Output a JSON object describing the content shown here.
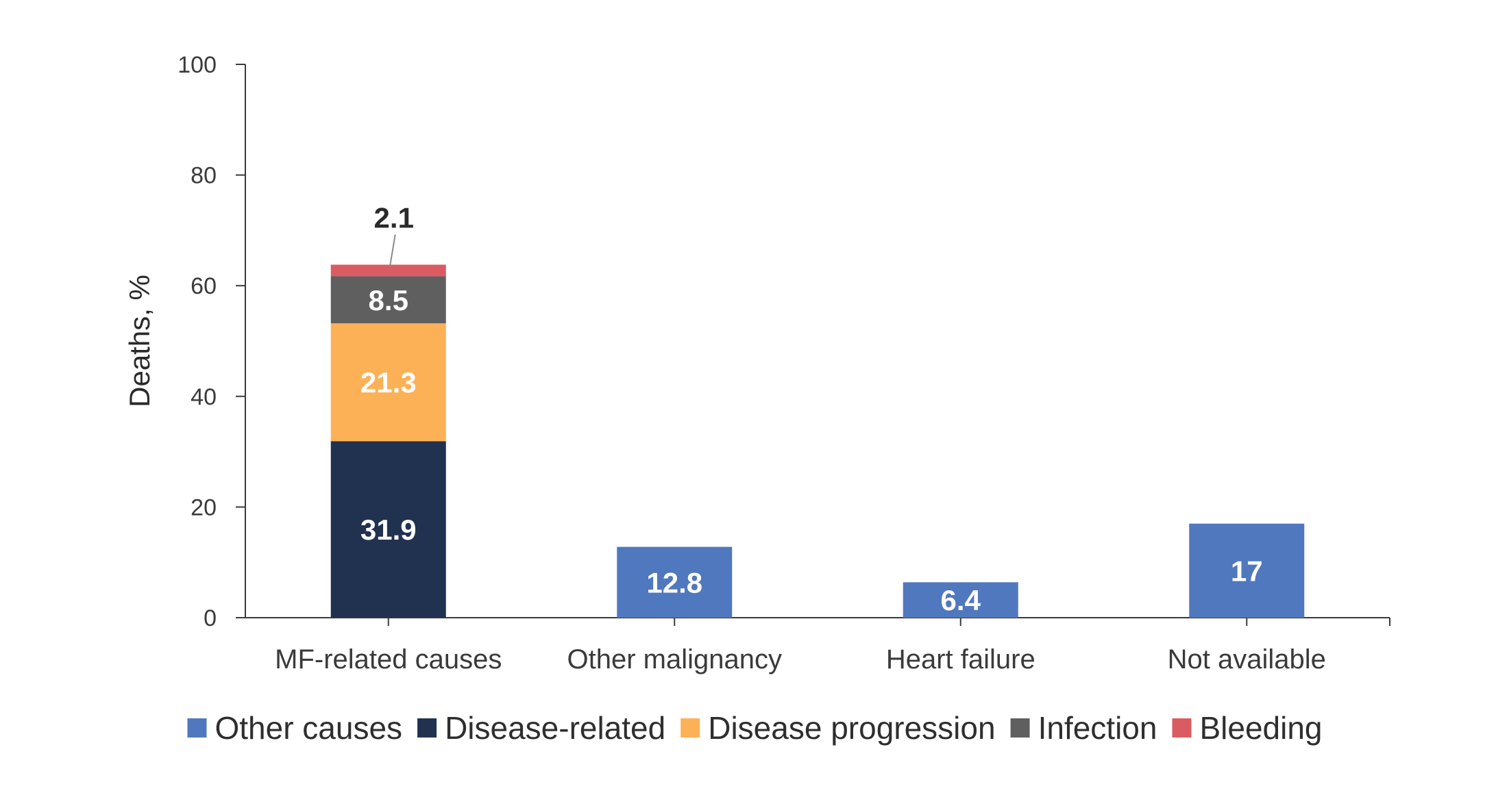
{
  "chart_data": {
    "type": "bar",
    "stacked": true,
    "categories": [
      "MF-related causes",
      "Other malignancy",
      "Heart failure",
      "Not available"
    ],
    "ylabel": "Deaths, %",
    "xlabel": "",
    "ylim": [
      0,
      100
    ],
    "yticks": [
      "0",
      "20",
      "40",
      "60",
      "80",
      "100"
    ],
    "grid": false,
    "legend_position": "bottom",
    "series": [
      {
        "name": "Other causes",
        "color": "#5078BE",
        "label_color": "#ffffff",
        "values": [
          null,
          12.8,
          6.4,
          17
        ],
        "labels": [
          "",
          "12.8",
          "6.4",
          "17"
        ]
      },
      {
        "name": "Disease-related",
        "color": "#213150",
        "label_color": "#ffffff",
        "values": [
          31.9,
          null,
          null,
          null
        ],
        "labels": [
          "31.9",
          "",
          "",
          ""
        ]
      },
      {
        "name": "Disease progression",
        "color": "#FDB157",
        "label_color": "#ffffff",
        "values": [
          21.3,
          null,
          null,
          null
        ],
        "labels": [
          "21.3",
          "",
          "",
          ""
        ]
      },
      {
        "name": "Infection",
        "color": "#5F5F5F",
        "label_color": "#ffffff",
        "values": [
          8.5,
          null,
          null,
          null
        ],
        "labels": [
          "8.5",
          "",
          "",
          ""
        ]
      },
      {
        "name": "Bleeding",
        "color": "#DA5C62",
        "label_color": "#2a2a2a",
        "values": [
          2.1,
          null,
          null,
          null
        ],
        "labels": [
          "2.1",
          "",
          "",
          ""
        ]
      }
    ]
  }
}
